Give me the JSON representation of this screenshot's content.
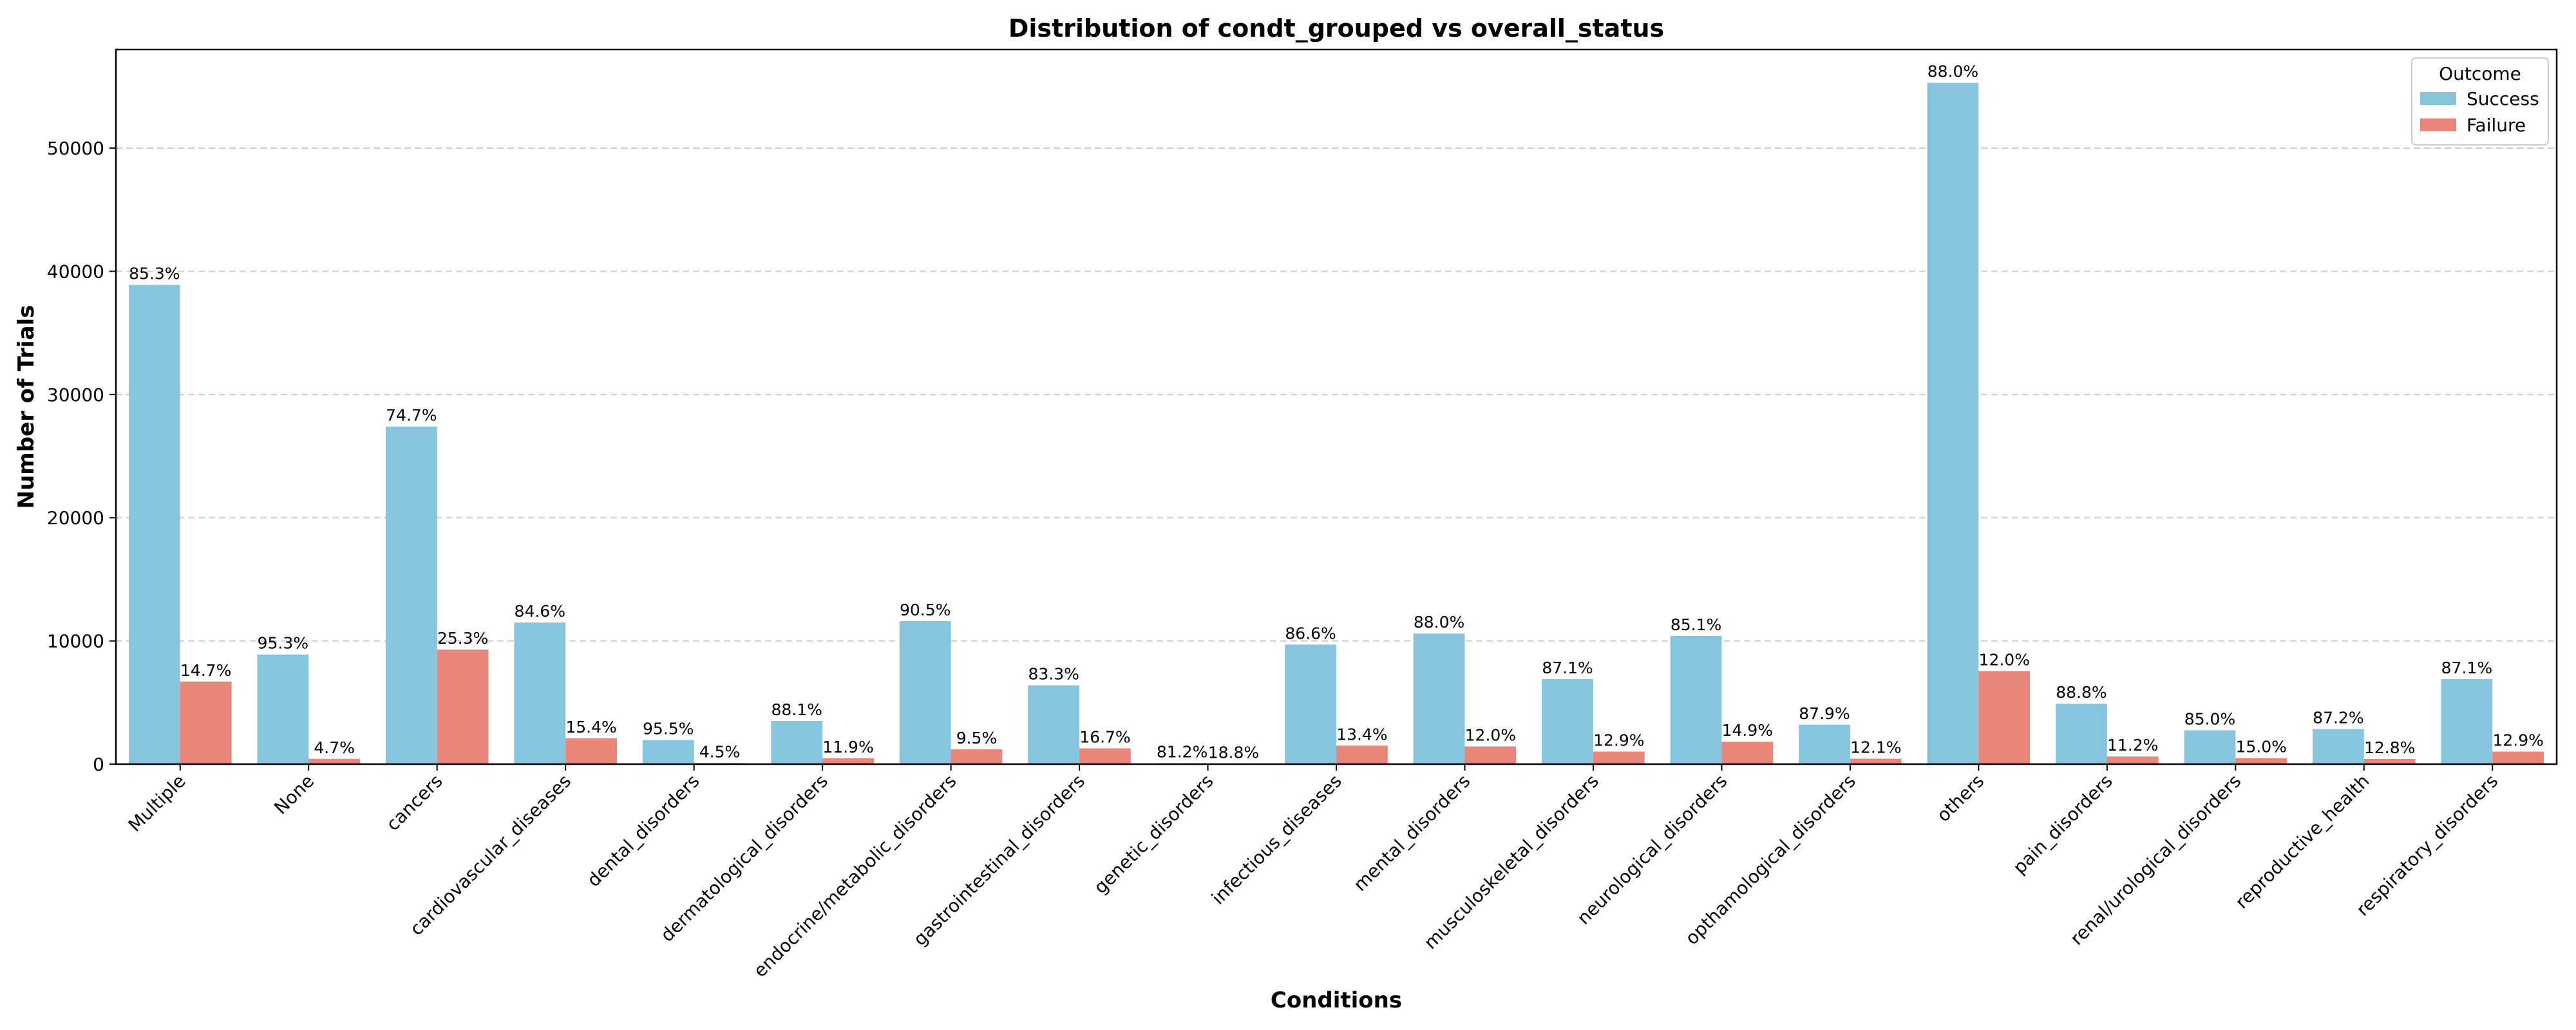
{
  "chart_data": {
    "type": "bar",
    "title": "Distribution of condt_grouped vs overall_status",
    "xlabel": "Conditions",
    "ylabel": "Number of Trials",
    "ylim": [
      0,
      58000
    ],
    "yticks": [
      0,
      10000,
      20000,
      30000,
      40000,
      50000
    ],
    "grid": "y-axis dashed",
    "legend": {
      "title": "Outcome",
      "placement": "top-right"
    },
    "categories": [
      "Multiple",
      "None",
      "cancers",
      "cardiovascular_diseases",
      "dental_disorders",
      "dermatological_disorders",
      "endocrine/metabolic_disorders",
      "gastrointestinal_disorders",
      "genetic_disorders",
      "infectious_diseases",
      "mental_disorders",
      "musculoskeletal_disorders",
      "neurological_disorders",
      "opthamological_disorders",
      "others",
      "pain_disorders",
      "renal/urological_disorders",
      "reproductive_health",
      "respiratory_disorders"
    ],
    "series": [
      {
        "name": "Success",
        "color": "#87c5de",
        "values": [
          38900,
          8900,
          27400,
          11500,
          1950,
          3500,
          11600,
          6400,
          70,
          9700,
          10600,
          6900,
          10400,
          3200,
          55300,
          4900,
          2750,
          2850,
          6900
        ],
        "labels": [
          "85.3%",
          "95.3%",
          "74.7%",
          "84.6%",
          "95.5%",
          "88.1%",
          "90.5%",
          "83.3%",
          "81.2%",
          "86.6%",
          "88.0%",
          "87.1%",
          "85.1%",
          "87.9%",
          "88.0%",
          "88.8%",
          "85.0%",
          "87.2%",
          "87.1%"
        ]
      },
      {
        "name": "Failure",
        "color": "#e8867a",
        "values": [
          6700,
          430,
          9300,
          2100,
          90,
          470,
          1200,
          1280,
          16,
          1500,
          1440,
          1020,
          1820,
          440,
          7550,
          620,
          490,
          420,
          1020
        ],
        "labels": [
          "14.7%",
          "4.7%",
          "25.3%",
          "15.4%",
          "4.5%",
          "11.9%",
          "9.5%",
          "16.7%",
          "18.8%",
          "13.4%",
          "12.0%",
          "12.9%",
          "14.9%",
          "12.1%",
          "12.0%",
          "11.2%",
          "15.0%",
          "12.8%",
          "12.9%"
        ]
      }
    ]
  }
}
